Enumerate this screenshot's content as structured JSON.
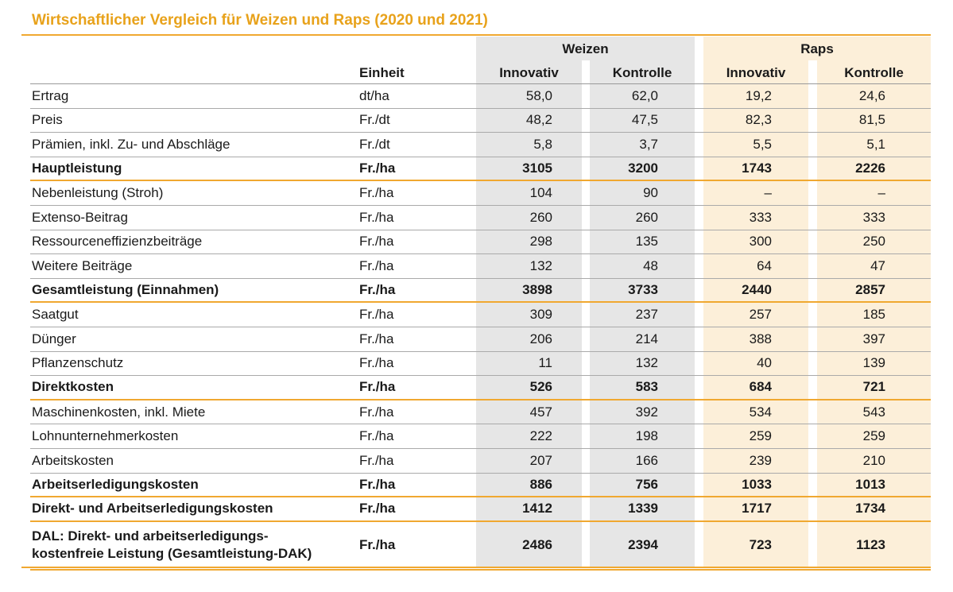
{
  "title": "Wirtschaftlicher Vergleich für Weizen und Raps (2020 und 2021)",
  "headers": {
    "unit": "Einheit",
    "group_weizen": "Weizen",
    "group_raps": "Raps",
    "innovativ": "Innovativ",
    "kontrolle": "Kontrolle"
  },
  "rows": [
    {
      "label": "Ertrag",
      "unit": "dt/ha",
      "w_inn": "58,0",
      "w_kon": "62,0",
      "r_inn": "19,2",
      "r_kon": "24,6"
    },
    {
      "label": "Preis",
      "unit": "Fr./dt",
      "w_inn": "48,2",
      "w_kon": "47,5",
      "r_inn": "82,3",
      "r_kon": "81,5"
    },
    {
      "label": "Prämien, inkl. Zu- und Abschläge",
      "unit": "Fr./dt",
      "w_inn": "5,8",
      "w_kon": "3,7",
      "r_inn": "5,5",
      "r_kon": "5,1"
    },
    {
      "label": "Hauptleistung",
      "unit": "Fr./ha",
      "w_inn": "3105",
      "w_kon": "3200",
      "r_inn": "1743",
      "r_kon": "2226"
    },
    {
      "label": "Nebenleistung (Stroh)",
      "unit": "Fr./ha",
      "w_inn": "104",
      "w_kon": "90",
      "r_inn": "–",
      "r_kon": "–"
    },
    {
      "label": "Extenso-Beitrag",
      "unit": "Fr./ha",
      "w_inn": "260",
      "w_kon": "260",
      "r_inn": "333",
      "r_kon": "333"
    },
    {
      "label": "Ressourceneffizienzbeiträge",
      "unit": "Fr./ha",
      "w_inn": "298",
      "w_kon": "135",
      "r_inn": "300",
      "r_kon": "250"
    },
    {
      "label": "Weitere Beiträge",
      "unit": "Fr./ha",
      "w_inn": "132",
      "w_kon": "48",
      "r_inn": "64",
      "r_kon": "47"
    },
    {
      "label": "Gesamtleistung (Einnahmen)",
      "unit": "Fr./ha",
      "w_inn": "3898",
      "w_kon": "3733",
      "r_inn": "2440",
      "r_kon": "2857"
    },
    {
      "label": "Saatgut",
      "unit": "Fr./ha",
      "w_inn": "309",
      "w_kon": "237",
      "r_inn": "257",
      "r_kon": "185"
    },
    {
      "label": "Dünger",
      "unit": "Fr./ha",
      "w_inn": "206",
      "w_kon": "214",
      "r_inn": "388",
      "r_kon": "397"
    },
    {
      "label": "Pflanzenschutz",
      "unit": "Fr./ha",
      "w_inn": "11",
      "w_kon": "132",
      "r_inn": "40",
      "r_kon": "139"
    },
    {
      "label": "Direktkosten",
      "unit": "Fr./ha",
      "w_inn": "526",
      "w_kon": "583",
      "r_inn": "684",
      "r_kon": "721"
    },
    {
      "label": "Maschinenkosten, inkl. Miete",
      "unit": "Fr./ha",
      "w_inn": "457",
      "w_kon": "392",
      "r_inn": "534",
      "r_kon": "543"
    },
    {
      "label": "Lohnunternehmerkosten",
      "unit": "Fr./ha",
      "w_inn": "222",
      "w_kon": "198",
      "r_inn": "259",
      "r_kon": "259"
    },
    {
      "label": "Arbeitskosten",
      "unit": "Fr./ha",
      "w_inn": "207",
      "w_kon": "166",
      "r_inn": "239",
      "r_kon": "210"
    },
    {
      "label": "Arbeitserledigungskosten",
      "unit": "Fr./ha",
      "w_inn": "886",
      "w_kon": "756",
      "r_inn": "1033",
      "r_kon": "1013"
    },
    {
      "label": "Direkt- und Arbeitserledigungskosten",
      "unit": "Fr./ha",
      "w_inn": "1412",
      "w_kon": "1339",
      "r_inn": "1717",
      "r_kon": "1734"
    },
    {
      "label": "DAL: Direkt- und arbeitserledigungs-",
      "label2": "kostenfreie Leistung (Gesamtleistung-DAK)",
      "unit": "Fr./ha",
      "w_inn": "2486",
      "w_kon": "2394",
      "r_inn": "723",
      "r_kon": "1123"
    }
  ]
}
